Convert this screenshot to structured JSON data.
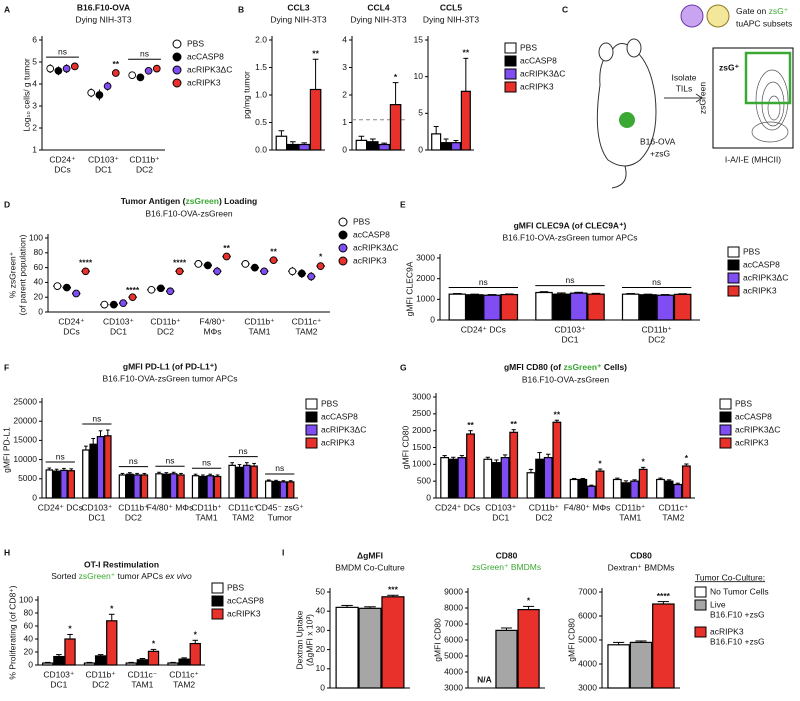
{
  "panel_labels": [
    "A",
    "B",
    "C",
    "D",
    "E",
    "F",
    "G",
    "H",
    "I"
  ],
  "diagram": {
    "gate": [
      "Gate on ",
      "zsG⁺",
      "tuAPC subsets"
    ],
    "isolate": [
      "Isolate",
      "TILs"
    ],
    "tumor": [
      "B16-OVA",
      "+zsG"
    ],
    "gate_box": "zsG⁺",
    "y_axis": "zsGreen",
    "x_axis": "I-A/I-E (MHCII)"
  },
  "chart_data": [
    {
      "type": "dot",
      "title": "B16.F10-OVA",
      "subtitle": "Dying NIH-3T3",
      "ylabel": "Log₁₀ cells/ g tumor",
      "categories": [
        [
          "CD24⁺",
          "DCs"
        ],
        [
          "CD103⁺",
          "DC1"
        ],
        [
          "CD11b⁺",
          "DC2"
        ]
      ],
      "ylim": [
        1,
        6
      ],
      "yticks": [
        1,
        2,
        3,
        4,
        5,
        6
      ],
      "legend": "right",
      "series": [
        {
          "name": "PBS",
          "color": "#ffffff",
          "values": [
            4.7,
            3.6,
            4.4
          ],
          "errors": [
            0.2,
            0.2,
            0.15
          ]
        },
        {
          "name": "acCASP8",
          "color": "#000000",
          "values": [
            4.6,
            3.5,
            4.3
          ],
          "errors": [
            0.2,
            0.25,
            0.15
          ]
        },
        {
          "name": "acRIPK3ΔC",
          "color": "#7f4df2",
          "values": [
            4.7,
            3.9,
            4.6
          ],
          "errors": [
            0.2,
            0.2,
            0.15
          ]
        },
        {
          "name": "acRIPK3",
          "color": "#e8312a",
          "values": [
            4.8,
            4.5,
            4.7
          ],
          "errors": [
            0.15,
            0.15,
            0.15
          ]
        }
      ],
      "significance": [
        "ns",
        "**",
        "ns"
      ]
    },
    {
      "type": "bar",
      "title": "CCL3",
      "subtitle": "Dying NIH-3T3",
      "ylabel": "pg/mg tumor",
      "categories": [
        null
      ],
      "ylim": [
        0,
        2
      ],
      "yticks": [
        {
          "value": 0,
          "label": "0.0"
        },
        {
          "value": 0.5,
          "label": "0.5"
        },
        {
          "value": 1,
          "label": "1.0"
        },
        {
          "value": 1.5,
          "label": "1.5"
        },
        {
          "value": 2,
          "label": "2.0"
        }
      ],
      "series": [
        {
          "color": "#ffffff",
          "values": [
            0.25
          ],
          "errors": [
            0.1
          ]
        },
        {
          "color": "#000000",
          "values": [
            0.1
          ],
          "errors": [
            0.05
          ]
        },
        {
          "color": "#7f4df2",
          "values": [
            0.1
          ],
          "errors": [
            0.03
          ]
        },
        {
          "color": "#e8312a",
          "values": [
            1.1
          ],
          "errors": [
            0.55
          ]
        }
      ],
      "significance": [
        "**"
      ]
    },
    {
      "type": "bar",
      "title": "CCL4",
      "subtitle": "Dying NIH-3T3",
      "categories": [
        null
      ],
      "ylim": [
        0,
        4
      ],
      "yticks": [
        0,
        1,
        2,
        3,
        4
      ],
      "ref_line": 1.1,
      "series": [
        {
          "color": "#ffffff",
          "values": [
            0.35
          ],
          "errors": [
            0.15
          ]
        },
        {
          "color": "#000000",
          "values": [
            0.3
          ],
          "errors": [
            0.1
          ]
        },
        {
          "color": "#7f4df2",
          "values": [
            0.2
          ],
          "errors": [
            0.05
          ]
        },
        {
          "color": "#e8312a",
          "values": [
            1.65
          ],
          "errors": [
            0.8
          ]
        }
      ],
      "significance": [
        "*"
      ]
    },
    {
      "type": "bar",
      "title": "CCL5",
      "subtitle": "Dying NIH-3T3",
      "categories": [
        null
      ],
      "ylim": [
        0,
        15
      ],
      "yticks": [
        0,
        5,
        10,
        15
      ],
      "legend": "right",
      "series": [
        {
          "name": "PBS",
          "color": "#ffffff",
          "values": [
            2.2
          ],
          "errors": [
            1
          ]
        },
        {
          "name": "acCASP8",
          "color": "#000000",
          "values": [
            1.0
          ],
          "errors": [
            0.5
          ]
        },
        {
          "name": "acRIPK3ΔC",
          "color": "#7f4df2",
          "values": [
            1.0
          ],
          "errors": [
            0.3
          ]
        },
        {
          "name": "acRIPK3",
          "color": "#e8312a",
          "values": [
            8.0
          ],
          "errors": [
            4.5
          ]
        }
      ],
      "significance": [
        "**"
      ]
    },
    {
      "type": "dot",
      "title": [
        {
          "text": "Tumor Antigen ("
        },
        {
          "text": "zsGreen",
          "color": "#3aa832"
        },
        {
          "text": ") Loading"
        }
      ],
      "subtitle": "B16.F10-OVA-zsGreen",
      "ylabel": [
        "% zsGreen⁺",
        "(of parent population)"
      ],
      "categories": [
        [
          "CD24⁺",
          "DCs"
        ],
        [
          "CD103⁺",
          "DC1"
        ],
        [
          "CD11b⁺",
          "DC2"
        ],
        [
          "F4/80⁺",
          "MΦs"
        ],
        [
          "CD11b⁺",
          "TAM1"
        ],
        [
          "CD11c⁺",
          "TAM2"
        ]
      ],
      "ylim": [
        0,
        100
      ],
      "yticks": [
        0,
        20,
        40,
        60,
        80,
        100
      ],
      "legend": "right",
      "series": [
        {
          "name": "PBS",
          "color": "#ffffff",
          "values": [
            35,
            10,
            30,
            65,
            65,
            55
          ],
          "errors": [
            4,
            2,
            3,
            5,
            5,
            6
          ]
        },
        {
          "name": "acCASP8",
          "color": "#000000",
          "values": [
            33,
            10,
            32,
            63,
            60,
            52
          ],
          "errors": [
            4,
            2,
            3,
            5,
            5,
            6
          ]
        },
        {
          "name": "acRIPK3ΔC",
          "color": "#7f4df2",
          "values": [
            25,
            12,
            28,
            55,
            55,
            48
          ],
          "errors": [
            4,
            2,
            4,
            6,
            5,
            6
          ]
        },
        {
          "name": "acRIPK3",
          "color": "#e8312a",
          "values": [
            55,
            20,
            55,
            75,
            70,
            62
          ],
          "errors": [
            4,
            2,
            4,
            4,
            4,
            5
          ]
        }
      ],
      "significance": [
        "****",
        "****",
        "****",
        "**",
        "**",
        "*"
      ]
    },
    {
      "type": "bar",
      "title": "gMFI CLEC9A (of CLEC9A⁺)",
      "subtitle": "B16.F10-OVA-zsGreen tumor APCs",
      "ylabel": "gMFI CLEC9A",
      "categories": [
        [
          "CD24⁺ DCs"
        ],
        [
          "CD103⁺",
          "DC1"
        ],
        [
          "CD11b⁺",
          "DC2"
        ]
      ],
      "ylim": [
        0,
        3000
      ],
      "yticks": [
        0,
        1000,
        2000,
        3000
      ],
      "legend": "right",
      "series": [
        {
          "name": "PBS",
          "color": "#ffffff",
          "values": [
            1250,
            1330,
            1250
          ],
          "errors": [
            30,
            40,
            30
          ]
        },
        {
          "name": "acCASP8",
          "color": "#000000",
          "values": [
            1220,
            1250,
            1220
          ],
          "errors": [
            30,
            60,
            30
          ]
        },
        {
          "name": "acRIPK3ΔC",
          "color": "#7f4df2",
          "values": [
            1200,
            1300,
            1200
          ],
          "errors": [
            30,
            40,
            30
          ]
        },
        {
          "name": "acRIPK3",
          "color": "#e8312a",
          "values": [
            1230,
            1250,
            1240
          ],
          "errors": [
            30,
            40,
            30
          ]
        }
      ],
      "significance": [
        "ns",
        "ns",
        "ns"
      ]
    },
    {
      "type": "bar",
      "title": "gMFI PD-L1 (of PD-L1⁺)",
      "subtitle": "B16.F10-OVA-zsGreen tumor APCs",
      "ylabel": "gMFI PD-L1",
      "categories": [
        [
          "CD24⁺ DCs"
        ],
        [
          "CD103⁺",
          "DC1"
        ],
        [
          "CD11b⁺",
          "DC2"
        ],
        [
          "F4/80⁺ MΦs"
        ],
        [
          "CD11b⁺",
          "TAM1"
        ],
        [
          "CD11c⁺",
          "TAM2"
        ],
        [
          "CD45⁻ zsG⁺",
          "Tumor"
        ]
      ],
      "ylim": [
        0,
        25000
      ],
      "yticks": [
        0,
        5000,
        10000,
        15000,
        20000,
        25000
      ],
      "legend": "right",
      "series": [
        {
          "name": "PBS",
          "color": "#ffffff",
          "values": [
            7300,
            12500,
            6000,
            6300,
            5800,
            8500,
            4400
          ],
          "errors": [
            500,
            1000,
            400,
            400,
            400,
            700,
            300
          ]
        },
        {
          "name": "acCASP8",
          "color": "#000000",
          "values": [
            7000,
            14000,
            6200,
            6200,
            5600,
            8000,
            4300
          ],
          "errors": [
            500,
            1500,
            400,
            400,
            400,
            700,
            300
          ]
        },
        {
          "name": "acRIPK3ΔC",
          "color": "#7f4df2",
          "values": [
            7200,
            16000,
            6000,
            6300,
            5800,
            8500,
            4200
          ],
          "errors": [
            500,
            1500,
            400,
            400,
            400,
            700,
            300
          ]
        },
        {
          "name": "acRIPK3",
          "color": "#e8312a",
          "values": [
            7100,
            16200,
            6000,
            6000,
            5600,
            8300,
            4200
          ],
          "errors": [
            500,
            1500,
            400,
            400,
            400,
            700,
            300
          ]
        }
      ],
      "significance": [
        "ns",
        "ns",
        "ns",
        "ns",
        "ns",
        "ns",
        "ns"
      ]
    },
    {
      "type": "bar",
      "title": [
        {
          "text": "gMFI CD80 (of "
        },
        {
          "text": "zsGreen⁺",
          "color": "#3aa832"
        },
        {
          "text": " Cells)"
        }
      ],
      "subtitle": "B16.F10-OVA-zsGreen",
      "ylabel": "gMFI CD80",
      "categories": [
        [
          "CD24⁺ DCs"
        ],
        [
          "CD103⁺",
          "DC1"
        ],
        [
          "CD11b⁺",
          "DC2"
        ],
        [
          "F4/80⁺ MΦs"
        ],
        [
          "CD11b⁺",
          "TAM1"
        ],
        [
          "CD11c⁺",
          "TAM2"
        ]
      ],
      "ylim": [
        0,
        3000
      ],
      "yticks": [
        0,
        500,
        1000,
        1500,
        2000,
        2500,
        3000
      ],
      "legend": "right",
      "series": [
        {
          "name": "PBS",
          "color": "#ffffff",
          "values": [
            1200,
            1150,
            750,
            550,
            550,
            550
          ],
          "errors": [
            60,
            60,
            100,
            30,
            40,
            40
          ]
        },
        {
          "name": "acCASP8",
          "color": "#000000",
          "values": [
            1150,
            1050,
            1150,
            550,
            450,
            500
          ],
          "errors": [
            60,
            80,
            200,
            30,
            60,
            40
          ]
        },
        {
          "name": "acRIPK3ΔC",
          "color": "#7f4df2",
          "values": [
            1200,
            1200,
            1200,
            350,
            500,
            400
          ],
          "errors": [
            60,
            80,
            100,
            30,
            40,
            40
          ]
        },
        {
          "name": "acRIPK3",
          "color": "#e8312a",
          "values": [
            1900,
            1950,
            2250,
            800,
            850,
            950
          ],
          "errors": [
            100,
            80,
            60,
            60,
            60,
            60
          ]
        }
      ],
      "significance": [
        "**",
        "**",
        "**",
        "*",
        "*",
        "*"
      ]
    },
    {
      "type": "bar",
      "title": "OT-I Restimulation",
      "subtitle": [
        {
          "text": "Sorted "
        },
        {
          "text": "zsGreen⁺",
          "color": "#3aa832"
        },
        {
          "text": " tumor APCs "
        },
        {
          "text": "ex vivo",
          "italic": true
        }
      ],
      "ylabel": "% Proliferating (of CD8⁺)",
      "categories": [
        [
          "CD103⁺",
          "DC1"
        ],
        [
          "CD11b⁺",
          "DC2"
        ],
        [
          "CD11c⁻",
          "TAM1"
        ],
        [
          "CD11c⁺",
          "TAM2"
        ]
      ],
      "ylim": [
        0,
        100
      ],
      "yticks": [
        0,
        20,
        40,
        60,
        80,
        100
      ],
      "legend": "right",
      "series": [
        {
          "name": "PBS",
          "color": "#ffffff",
          "values": [
            3,
            3,
            3,
            3
          ],
          "errors": [
            1,
            1,
            1,
            1
          ]
        },
        {
          "name": "acCASP8",
          "color": "#000000",
          "values": [
            13,
            14,
            8,
            9
          ],
          "errors": [
            3,
            2,
            2,
            2
          ]
        },
        {
          "name": "acRIPK3",
          "color": "#e8312a",
          "values": [
            40,
            68,
            21,
            33
          ],
          "errors": [
            7,
            10,
            3,
            5
          ]
        }
      ],
      "significance": [
        "*",
        "*",
        "*",
        "*"
      ]
    },
    {
      "type": "bar",
      "title": "ΔgMFI",
      "subtitle": "BMDM Co-Culture",
      "ylabel": [
        "Dextran Uptake",
        "(ΔgMFI x 10³)"
      ],
      "categories": [
        null
      ],
      "ylim": [
        0,
        50
      ],
      "yticks": [
        0,
        10,
        20,
        30,
        40,
        50
      ],
      "series": [
        {
          "color": "#ffffff",
          "values": [
            42
          ],
          "errors": [
            1
          ]
        },
        {
          "color": "#a6a6a6",
          "values": [
            41.5
          ],
          "errors": [
            0.8
          ]
        },
        {
          "color": "#e8312a",
          "values": [
            47.5
          ],
          "errors": [
            0.8
          ]
        }
      ],
      "significance": [
        "***"
      ]
    },
    {
      "type": "bar",
      "title": "CD80",
      "subtitle": [
        {
          "text": "zsGreen⁺ BMDMs",
          "color": "#3aa832"
        }
      ],
      "ylabel": "gMFI CD80",
      "categories": [
        null
      ],
      "ylim": [
        3000,
        9000
      ],
      "yticks": [
        3000,
        4000,
        5000,
        6000,
        7000,
        8000,
        9000
      ],
      "series": [
        {
          "color": "#ffffff",
          "values": [
            null
          ],
          "value_labels": [
            "N/A"
          ]
        },
        {
          "color": "#a6a6a6",
          "values": [
            6600
          ],
          "errors": [
            150
          ]
        },
        {
          "color": "#e8312a",
          "values": [
            7900
          ],
          "errors": [
            200
          ]
        }
      ],
      "significance": [
        "*"
      ]
    },
    {
      "type": "bar",
      "title": "CD80",
      "subtitle": "Dextran⁺ BMDMs",
      "ylabel": "gMFI CD80",
      "categories": [
        null
      ],
      "ylim": [
        3000,
        7000
      ],
      "yticks": [
        3000,
        4000,
        5000,
        6000,
        7000
      ],
      "legend": "right",
      "legend_title": "Tumor Co-Culture:",
      "series": [
        {
          "name": [
            "No Tumor Cells"
          ],
          "color": "#ffffff",
          "values": [
            4800
          ],
          "errors": [
            100
          ]
        },
        {
          "name": [
            "Live",
            "B16.F10 +zsG"
          ],
          "color": "#a6a6a6",
          "values": [
            4900
          ],
          "errors": [
            60
          ]
        },
        {
          "name": [
            "acRIPK3",
            "B16.F10 +zsG"
          ],
          "color": "#e8312a",
          "values": [
            6500
          ],
          "errors": [
            100
          ]
        }
      ],
      "significance": [
        "****"
      ]
    }
  ]
}
